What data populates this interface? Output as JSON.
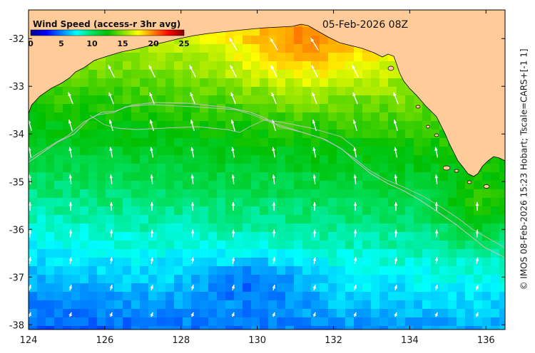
{
  "map": {
    "date_label": "05-Feb-2026 08Z",
    "credit": "© IMOS 08-Feb-2026 15:23 Hobart; Tscale=CARS+[-1 1]",
    "land_color": "#FFCC99",
    "coast_color": "#000000",
    "shelf_contour_color": "#BFBFBF",
    "arrow_color": "#FFFFFF"
  },
  "colorbar": {
    "title": "Wind Speed (access-r 3hr avg)",
    "min": 0,
    "max": 25,
    "tick_labels": [
      "0",
      "5",
      "10",
      "15",
      "20",
      "25"
    ],
    "colormap": [
      "#00008C",
      "#0000FF",
      "#0080FF",
      "#00FFFF",
      "#00E060",
      "#00C000",
      "#80E000",
      "#FFFF00",
      "#FF8000",
      "#FF0000",
      "#800000"
    ]
  },
  "axes": {
    "x_ticks": [
      "124",
      "126",
      "128",
      "130",
      "132",
      "134",
      "136"
    ],
    "y_ticks": [
      "-32",
      "-33",
      "-34",
      "-35",
      "-36",
      "-37",
      "-38"
    ],
    "lon_range": [
      124,
      136.5
    ],
    "lat_range": [
      -38.1,
      -31.4
    ]
  }
}
